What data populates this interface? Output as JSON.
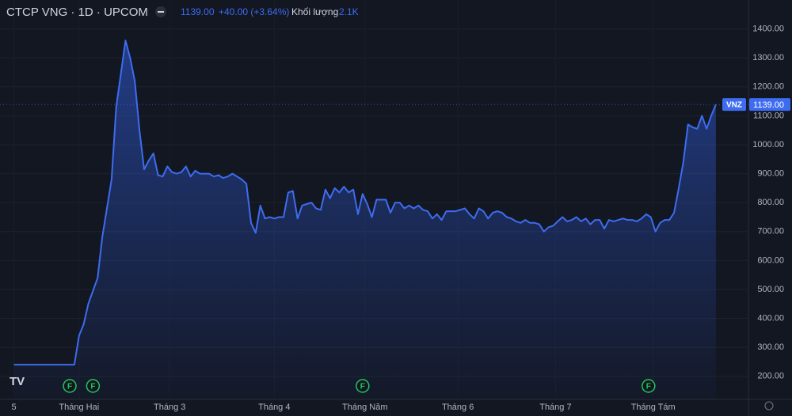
{
  "chart_data": {
    "type": "area",
    "header": {
      "title": "CTCP VNG · 1D · UPCOM",
      "last": "1139.00",
      "change": "+40.00 (+3.64%)",
      "volume_label": "Khối lượng",
      "volume": "2.1K"
    },
    "series": [
      {
        "name": "VNZ",
        "color": "#3d6cf0",
        "x": [
          0,
          13,
          14,
          15,
          16,
          18,
          19,
          21,
          22,
          24,
          25,
          26,
          27,
          28,
          29,
          30,
          31,
          32,
          33,
          34,
          35,
          36,
          37,
          38,
          39,
          40,
          41,
          42,
          43,
          44,
          45,
          46,
          47,
          48,
          49,
          50,
          51,
          52,
          53,
          54,
          55,
          56,
          57,
          58,
          59,
          60,
          61,
          62,
          63,
          64,
          65,
          66,
          67,
          68,
          69,
          70,
          71,
          72,
          73,
          74,
          75,
          76,
          77,
          78,
          79,
          80,
          81,
          82,
          83,
          84,
          85,
          86,
          87,
          88,
          89,
          90,
          91,
          92,
          93,
          94,
          95,
          96,
          97,
          98,
          99,
          100,
          101,
          102,
          103,
          104,
          105,
          106,
          107,
          108,
          109,
          110,
          111,
          112,
          113,
          114,
          115,
          116,
          117,
          118,
          119,
          120,
          121,
          122,
          123,
          124,
          125,
          126,
          127,
          128,
          129,
          130,
          131,
          132,
          133,
          134,
          135,
          136,
          137,
          138,
          139,
          140,
          141,
          142,
          143,
          144,
          145,
          146,
          147,
          148,
          149,
          150,
          151
        ],
        "values": [
          240,
          240,
          340,
          380,
          450,
          540,
          680,
          880,
          1130,
          1360,
          1300,
          1220,
          1050,
          915,
          945,
          970,
          895,
          890,
          925,
          905,
          900,
          905,
          925,
          890,
          910,
          900,
          900,
          900,
          890,
          895,
          885,
          890,
          900,
          890,
          880,
          865,
          730,
          695,
          790,
          745,
          750,
          745,
          750,
          750,
          835,
          840,
          745,
          790,
          795,
          800,
          780,
          775,
          845,
          815,
          850,
          835,
          855,
          835,
          845,
          760,
          830,
          795,
          750,
          810,
          810,
          810,
          765,
          800,
          800,
          780,
          790,
          780,
          790,
          775,
          770,
          745,
          760,
          740,
          770,
          770,
          770,
          775,
          780,
          760,
          745,
          780,
          770,
          745,
          765,
          770,
          765,
          750,
          745,
          735,
          730,
          740,
          730,
          730,
          725,
          700,
          715,
          720,
          735,
          750,
          735,
          740,
          750,
          735,
          745,
          725,
          740,
          740,
          710,
          740,
          735,
          740,
          745,
          740,
          740,
          735,
          745,
          760,
          750,
          700,
          730,
          740,
          740,
          765,
          850,
          940,
          1070,
          1060,
          1055,
          1100,
          1055,
          1100,
          1139
        ]
      }
    ],
    "last_price": {
      "value": 1139,
      "label": "1139.00"
    },
    "xlim": [
      -3,
      158
    ],
    "xticks": [
      {
        "value": 0,
        "label": "5"
      },
      {
        "value": 14,
        "label": "Tháng Hai"
      },
      {
        "value": 33.5,
        "label": "Tháng 3"
      },
      {
        "value": 56,
        "label": "Tháng 4"
      },
      {
        "value": 75.5,
        "label": "Tháng Năm"
      },
      {
        "value": 95.5,
        "label": "Tháng 6"
      },
      {
        "value": 116.5,
        "label": "Tháng 7"
      },
      {
        "value": 137.5,
        "label": "Tháng Tám"
      }
    ],
    "ylim": [
      120,
      1500
    ],
    "yticks": [
      {
        "value": 200,
        "label": "200.00"
      },
      {
        "value": 300,
        "label": "300.00"
      },
      {
        "value": 400,
        "label": "400.00"
      },
      {
        "value": 500,
        "label": "500.00"
      },
      {
        "value": 600,
        "label": "600.00"
      },
      {
        "value": 700,
        "label": "700.00"
      },
      {
        "value": 800,
        "label": "800.00"
      },
      {
        "value": 900,
        "label": "900.00"
      },
      {
        "value": 1000,
        "label": "1000.00"
      },
      {
        "value": 1100,
        "label": "1100.00"
      },
      {
        "value": 1200,
        "label": "1200.00"
      },
      {
        "value": 1300,
        "label": "1300.00"
      },
      {
        "value": 1400,
        "label": "1400.00"
      }
    ],
    "events": [
      {
        "x": 12,
        "label": "F"
      },
      {
        "x": 17,
        "label": "F"
      },
      {
        "x": 75,
        "label": "F"
      },
      {
        "x": 136.5,
        "label": "F"
      }
    ],
    "grid": true
  }
}
